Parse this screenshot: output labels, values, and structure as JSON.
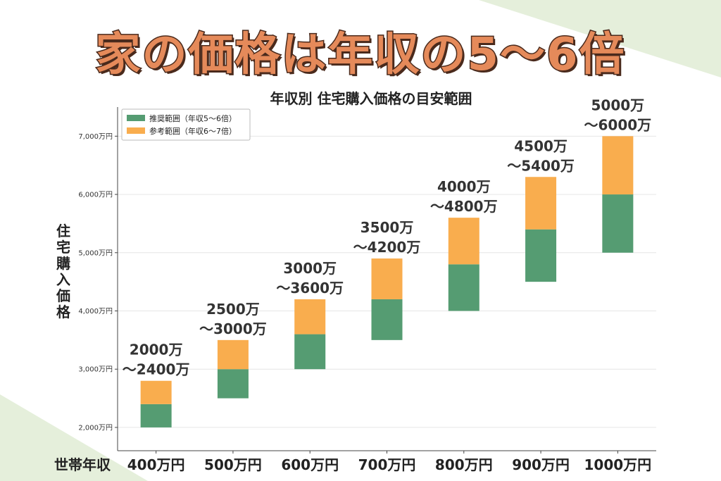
{
  "headline": "家の価格は年収の5～6倍",
  "colors": {
    "recommended": "#559c72",
    "reference": "#f9ad4e",
    "accent_bg": "#e5efdb",
    "headline": "#e58a5a"
  },
  "chart_data": {
    "type": "bar",
    "title": "年収別 住宅購入価格の目安範囲",
    "xlabel": "世帯年収",
    "ylabel": "住宅購入価格",
    "categories": [
      "400万円",
      "500万円",
      "600万円",
      "700万円",
      "800万円",
      "900万円",
      "1000万円"
    ],
    "yticks": [
      {
        "value": 2000,
        "label": "2,000万円"
      },
      {
        "value": 3000,
        "label": "3,000万円"
      },
      {
        "value": 4000,
        "label": "4,000万円"
      },
      {
        "value": 5000,
        "label": "5,000万円"
      },
      {
        "value": 6000,
        "label": "6,000万円"
      },
      {
        "value": 7000,
        "label": "7,000万円"
      }
    ],
    "ylim": [
      1600,
      7500
    ],
    "grid": true,
    "legend_position": "top-left",
    "series": [
      {
        "name": "推奨範囲（年収5～6倍）",
        "low": [
          2000,
          2500,
          3000,
          3500,
          4000,
          4500,
          5000
        ],
        "high": [
          2400,
          3000,
          3600,
          4200,
          4800,
          5400,
          6000
        ]
      },
      {
        "name": "参考範囲（年収6～7倍）",
        "low": [
          2400,
          3000,
          3600,
          4200,
          4800,
          5400,
          6000
        ],
        "high": [
          2800,
          3500,
          4200,
          4900,
          5600,
          6300,
          7000
        ]
      }
    ],
    "annotations": [
      [
        "2000万",
        "～2400万"
      ],
      [
        "2500万",
        "～3000万"
      ],
      [
        "3000万",
        "～3600万"
      ],
      [
        "3500万",
        "～4200万"
      ],
      [
        "4000万",
        "～4800万"
      ],
      [
        "4500万",
        "～5400万"
      ],
      [
        "5000万",
        "～6000万"
      ]
    ]
  }
}
